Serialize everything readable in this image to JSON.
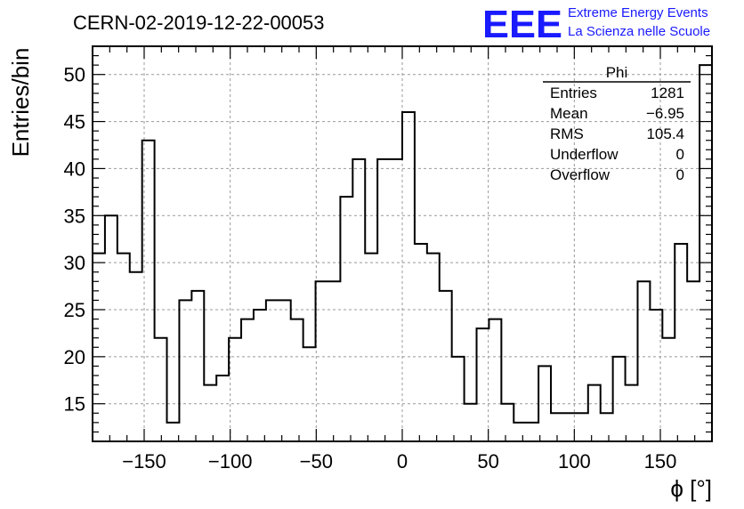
{
  "title": "CERN-02-2019-12-22-00053",
  "logo": {
    "mark": "EEE",
    "line1": "Extreme Energy Events",
    "line2": "La Scienza nelle Scuole",
    "color": "#1a1aff"
  },
  "stats": {
    "name": "Phi",
    "rows": [
      {
        "label": "Entries",
        "value": "1281"
      },
      {
        "label": "Mean",
        "value": "−6.95"
      },
      {
        "label": "RMS",
        "value": "105.4"
      },
      {
        "label": "Underflow",
        "value": "0"
      },
      {
        "label": "Overflow",
        "value": "0"
      }
    ]
  },
  "chart_data": {
    "type": "bar",
    "histogram_style": "step",
    "title": "CERN-02-2019-12-22-00053",
    "xlabel": "ϕ [°]",
    "ylabel": "Entries/bin",
    "xlim": [
      -180,
      180
    ],
    "ylim": [
      11,
      53
    ],
    "grid": true,
    "legend_position": "top-right",
    "bin_edges": [
      -180,
      -172.8,
      -165.6,
      -158.4,
      -151.2,
      -144,
      -136.8,
      -129.6,
      -122.4,
      -115.2,
      -108,
      -100.8,
      -93.6,
      -86.4,
      -79.2,
      -72,
      -64.8,
      -57.6,
      -50.4,
      -43.2,
      -36,
      -28.8,
      -21.6,
      -14.4,
      -7.2,
      0,
      7.2,
      14.4,
      21.6,
      28.8,
      36,
      43.2,
      50.4,
      57.6,
      64.8,
      72,
      79.2,
      86.4,
      93.6,
      100.8,
      108,
      115.2,
      122.4,
      129.6,
      136.8,
      144,
      151.2,
      158.4,
      165.6,
      172.8,
      180
    ],
    "values": [
      31,
      35,
      31,
      29,
      43,
      22,
      13,
      26,
      27,
      17,
      18,
      22,
      24,
      25,
      26,
      26,
      24,
      21,
      28,
      28,
      37,
      41,
      31,
      41,
      41,
      46,
      32,
      31,
      27,
      20,
      15,
      23,
      24,
      15,
      13,
      13,
      19,
      14,
      14,
      14,
      17,
      14,
      20,
      17,
      28,
      25,
      22,
      32,
      28,
      51
    ],
    "x_ticks": [
      -150,
      -100,
      -50,
      0,
      50,
      100,
      150
    ],
    "x_tick_labels": [
      "−150",
      "−100",
      "−50",
      "0",
      "50",
      "100",
      "150"
    ],
    "y_ticks": [
      15,
      20,
      25,
      30,
      35,
      40,
      45,
      50
    ],
    "y_tick_labels": [
      "15",
      "20",
      "25",
      "30",
      "35",
      "40",
      "45",
      "50"
    ]
  }
}
